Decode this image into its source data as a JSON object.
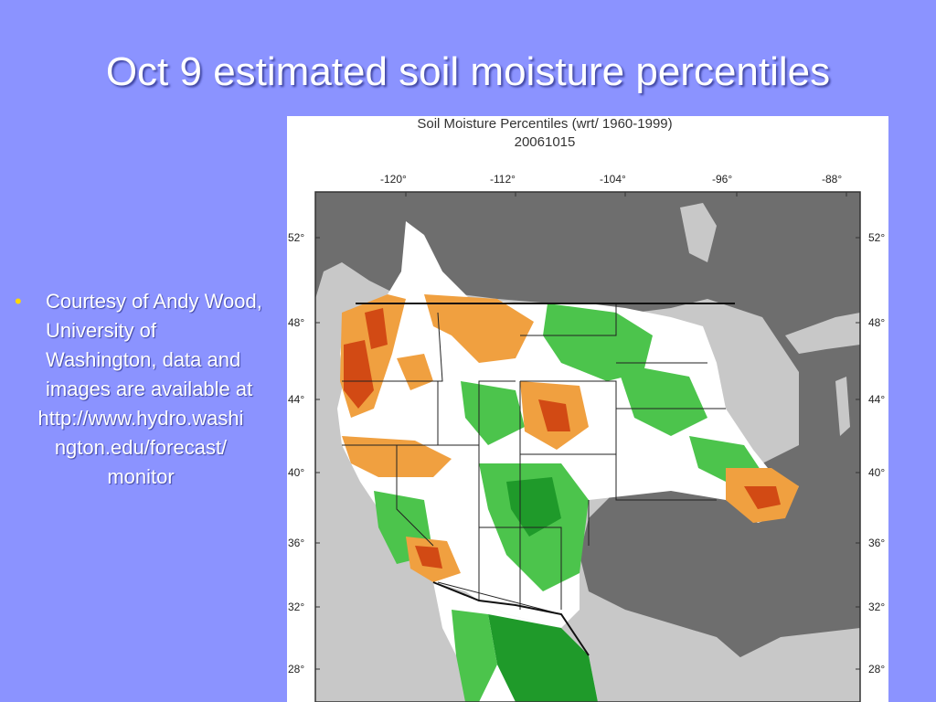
{
  "slide": {
    "title": "Oct 9 estimated soil moisture percentiles"
  },
  "bullet": {
    "text": "Courtesy of Andy Wood, University of Washington, data and images are available at",
    "url": "http://www.hydro.washington.edu/forecast/monitor",
    "url_line1": "http://www.hydro.washi",
    "url_line2": "ngton.edu/forecast/",
    "url_line3": "monitor",
    "bullet_color": "#ffd800"
  },
  "map": {
    "title": "Soil Moisture Percentiles (wrt/ 1960-1999)",
    "subtitle": "20061015",
    "longitude_ticks": [
      "-120°",
      "-112°",
      "-104°",
      "-96°",
      "-88°"
    ],
    "latitude_ticks": [
      "52°",
      "48°",
      "44°",
      "40°",
      "36°",
      "32°",
      "28°"
    ],
    "colors": {
      "land_outside_domain": "#6e6e6e",
      "ocean": "#c8c8c8",
      "near_normal": "#ffffff",
      "wet": "#4cc44c",
      "very_wet": "#1f9a2a",
      "dry": "#f0a040",
      "very_dry": "#d24a14",
      "boundary": "#222222"
    }
  }
}
